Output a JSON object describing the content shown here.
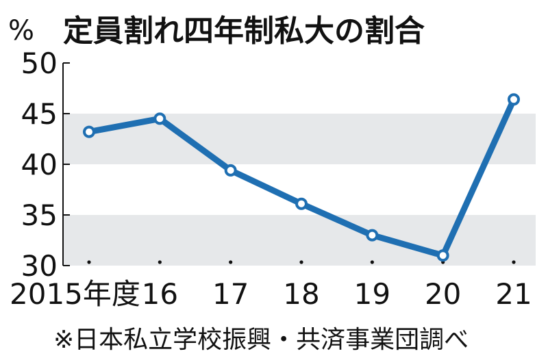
{
  "chart_data": {
    "type": "line",
    "title": "定員割れ四年制私大の割合",
    "ylabel": "%",
    "categories": [
      "2015年度",
      "16",
      "17",
      "18",
      "19",
      "20",
      "21"
    ],
    "series": [
      {
        "values": [
          43.2,
          44.5,
          39.4,
          36.1,
          33.0,
          31.0,
          46.4
        ]
      }
    ],
    "ylim": [
      30,
      50
    ],
    "yticks": [
      30,
      35,
      40,
      45,
      50
    ],
    "bands": [
      [
        30,
        35
      ],
      [
        40,
        45
      ]
    ],
    "line_color": "#1f6fb2",
    "band_color": "#e6e8ea",
    "note": "※日本私立学校振興・共済事業団調べ"
  }
}
